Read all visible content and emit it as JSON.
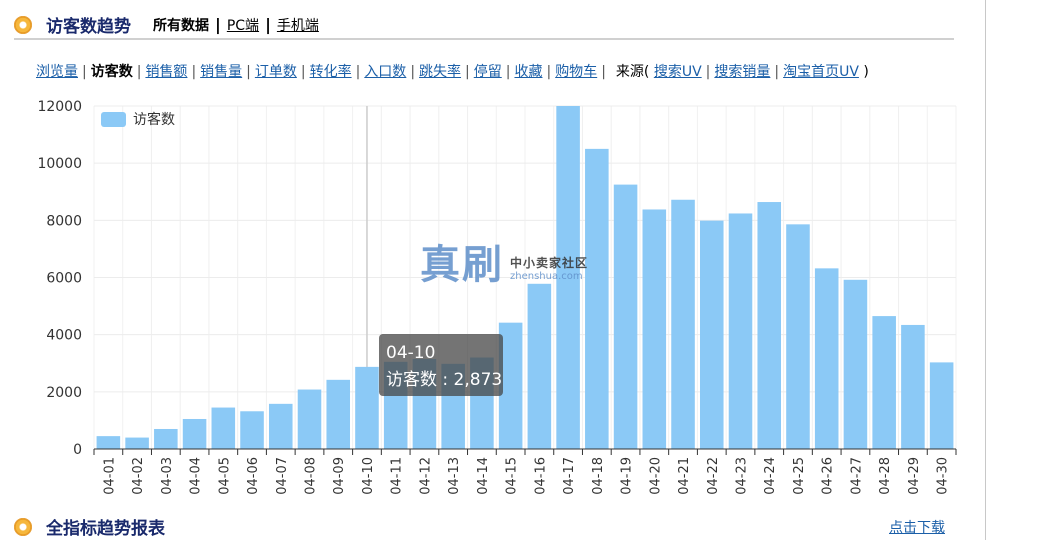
{
  "header": {
    "title": "访客数趋势",
    "links": [
      "所有数据",
      "PC端",
      "手机端"
    ]
  },
  "metric_tabs": [
    {
      "label": "浏览量",
      "active": false
    },
    {
      "label": "访客数",
      "active": true
    },
    {
      "label": "销售额",
      "active": false
    },
    {
      "label": "销售量",
      "active": false
    },
    {
      "label": "订单数",
      "active": false
    },
    {
      "label": "转化率",
      "active": false
    },
    {
      "label": "入口数",
      "active": false
    },
    {
      "label": "跳失率",
      "active": false
    },
    {
      "label": "停留",
      "active": false
    },
    {
      "label": "收藏",
      "active": false
    },
    {
      "label": "购物车",
      "active": false
    }
  ],
  "source": {
    "prefix": "来源(",
    "links": [
      "搜索UV",
      "搜索销量",
      "淘宝首页UV"
    ],
    "suffix": ")"
  },
  "tooltip": {
    "date": "04-10",
    "text": "访客数 : 2,873"
  },
  "watermark": {
    "main": "真刷",
    "sub": "中小卖家社区",
    "url": "zhenshua.com"
  },
  "footer": {
    "title": "全指标趋势报表",
    "download": "点击下载"
  },
  "colors": {
    "bar": "#8bc9f6",
    "title": "#1a2a6c",
    "link": "#1b5fa8"
  },
  "chart_data": {
    "type": "bar",
    "categories": [
      "04-01",
      "04-02",
      "04-03",
      "04-04",
      "04-05",
      "04-06",
      "04-07",
      "04-08",
      "04-09",
      "04-10",
      "04-11",
      "04-12",
      "04-13",
      "04-14",
      "04-15",
      "04-16",
      "04-17",
      "04-18",
      "04-19",
      "04-20",
      "04-21",
      "04-22",
      "04-23",
      "04-24",
      "04-25",
      "04-26",
      "04-27",
      "04-28",
      "04-29",
      "04-30"
    ],
    "series": [
      {
        "name": "访客数",
        "values": [
          450,
          400,
          700,
          1050,
          1450,
          1320,
          1580,
          2080,
          2420,
          2873,
          3050,
          3150,
          2980,
          3200,
          4420,
          5780,
          12000,
          10500,
          9250,
          8380,
          8720,
          7990,
          8240,
          8640,
          7860,
          6320,
          5920,
          4650,
          4340,
          3030
        ]
      }
    ],
    "yticks": [
      0,
      2000,
      4000,
      6000,
      8000,
      10000,
      12000
    ],
    "ylim": [
      0,
      12000
    ],
    "highlight_category": "04-10",
    "legend_position": "top-left",
    "grid": true
  }
}
